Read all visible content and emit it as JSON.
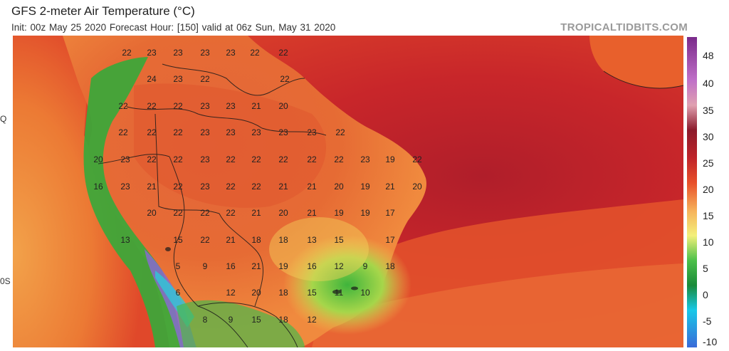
{
  "header": {
    "title": "GFS 2-meter Air Temperature (°C)",
    "subtitle": "Init: 00z May 25 2020   Forecast Hour: [150]   valid at 06z Sun, May 31 2020",
    "source": "TROPICALTIDBITS.COM"
  },
  "axes": {
    "lat_labels": [
      "Q",
      "0S"
    ]
  },
  "colorbar": {
    "ticks": [
      "48",
      "40",
      "35",
      "30",
      "25",
      "20",
      "15",
      "10",
      "5",
      "0",
      "-5",
      "-10"
    ],
    "colors": [
      "#7a2a8a",
      "#c070c8",
      "#e0a0b0",
      "#8b1a2b",
      "#c0242a",
      "#e8502a",
      "#f6b25a",
      "#f3f07a",
      "#4cc04a",
      "#1a8a3a",
      "#18c8e8",
      "#3a6ad8"
    ]
  },
  "station_values": [
    "22",
    "23",
    "23",
    "23",
    "23",
    "22",
    "22",
    "24",
    "23",
    "22",
    "22",
    "22",
    "22",
    "22",
    "23",
    "23",
    "21",
    "20",
    "22",
    "22",
    "22",
    "23",
    "23",
    "23",
    "23",
    "23",
    "22",
    "20",
    "23",
    "22",
    "22",
    "23",
    "22",
    "22",
    "22",
    "22",
    "22",
    "23",
    "19",
    "22",
    "16",
    "23",
    "21",
    "22",
    "23",
    "22",
    "22",
    "21",
    "21",
    "20",
    "19",
    "21",
    "20",
    "20",
    "22",
    "22",
    "22",
    "21",
    "20",
    "21",
    "19",
    "19",
    "17",
    "13",
    "15",
    "22",
    "21",
    "18",
    "18",
    "13",
    "15",
    "17",
    "5",
    "9",
    "16",
    "21",
    "19",
    "16",
    "12",
    "9",
    "18",
    "6",
    "12",
    "20",
    "18",
    "15",
    "11",
    "10",
    "8",
    "9",
    "15",
    "18",
    "12"
  ]
}
